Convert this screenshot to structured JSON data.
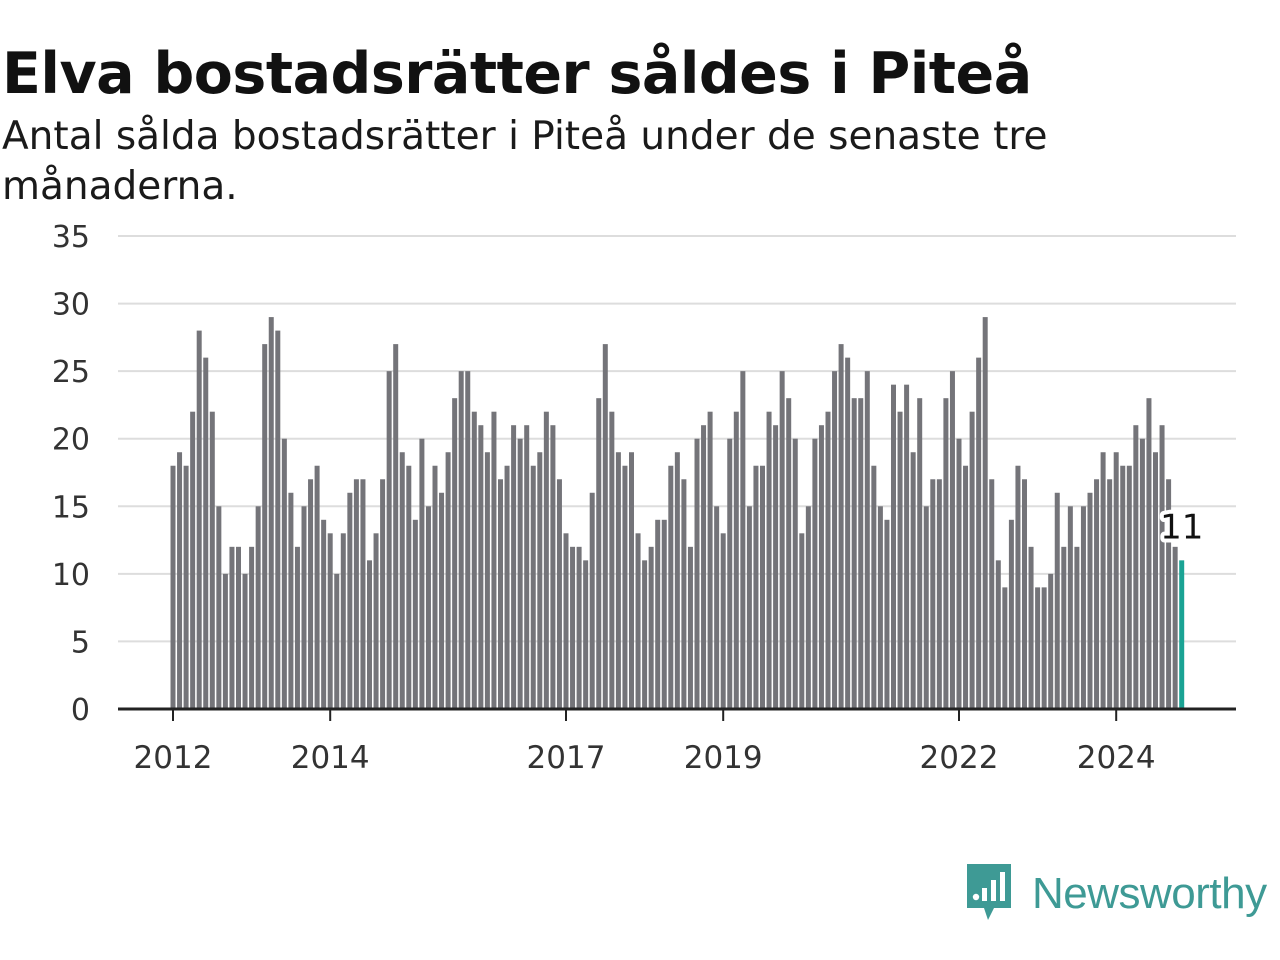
{
  "headline": "Elva bostadsrätter såldes i Piteå",
  "subheadline": "Antal sålda bostadsrätter i Piteå under de senaste tre månaderna.",
  "brand": {
    "name": "Newsworthy",
    "color": "#3e9a95",
    "icon": "newsworthy-logo-icon"
  },
  "colors": {
    "bar": "#747479",
    "highlight": "#1aa394",
    "grid": "#dddddd",
    "axis": "#222222"
  },
  "chart_data": {
    "type": "bar",
    "title": "Elva bostadsrätter såldes i Piteå",
    "subtitle": "Antal sålda bostadsrätter i Piteå under de senaste tre månaderna.",
    "xlabel": "",
    "ylabel": "",
    "ylim": [
      0,
      35
    ],
    "y_ticks": [
      0,
      5,
      10,
      15,
      20,
      25,
      30,
      35
    ],
    "x_tick_labels": [
      "2012",
      "2014",
      "2017",
      "2019",
      "2022",
      "2024"
    ],
    "grid": true,
    "highlight_label": "11",
    "series": [
      {
        "start": "2012-01",
        "frequency": "monthly",
        "values": [
          18,
          19,
          18,
          22,
          28,
          26,
          22,
          15,
          10,
          12,
          12,
          10,
          12,
          15,
          27,
          29,
          28,
          20,
          16,
          12,
          15,
          17,
          18,
          14,
          13,
          10,
          13,
          16,
          17,
          17,
          11,
          13,
          17,
          25,
          27,
          19,
          18,
          14,
          20,
          15,
          18,
          16,
          19,
          23,
          25,
          25,
          22,
          21,
          19,
          22,
          17,
          18,
          21,
          20,
          21,
          18,
          19,
          22,
          21,
          17,
          13,
          12,
          12,
          11,
          16,
          23,
          27,
          22,
          19,
          18,
          19,
          13,
          11,
          12,
          14,
          14,
          18,
          19,
          17,
          12,
          20,
          21,
          22,
          15,
          13,
          20,
          22,
          25,
          15,
          18,
          18,
          22,
          21,
          25,
          23,
          20,
          13,
          15,
          20,
          21,
          22,
          25,
          27,
          26,
          23,
          23,
          25,
          18,
          15,
          14,
          24,
          22,
          24,
          19,
          23,
          15,
          17,
          17,
          23,
          25,
          20,
          18,
          22,
          26,
          29,
          17,
          11,
          9,
          14,
          18,
          17,
          12,
          9,
          9,
          10,
          16,
          12,
          15,
          12,
          15,
          16,
          17,
          19,
          17,
          19,
          18,
          18,
          21,
          20,
          23,
          19,
          21,
          17,
          12,
          11
        ],
        "highlight_last": 1
      }
    ]
  }
}
